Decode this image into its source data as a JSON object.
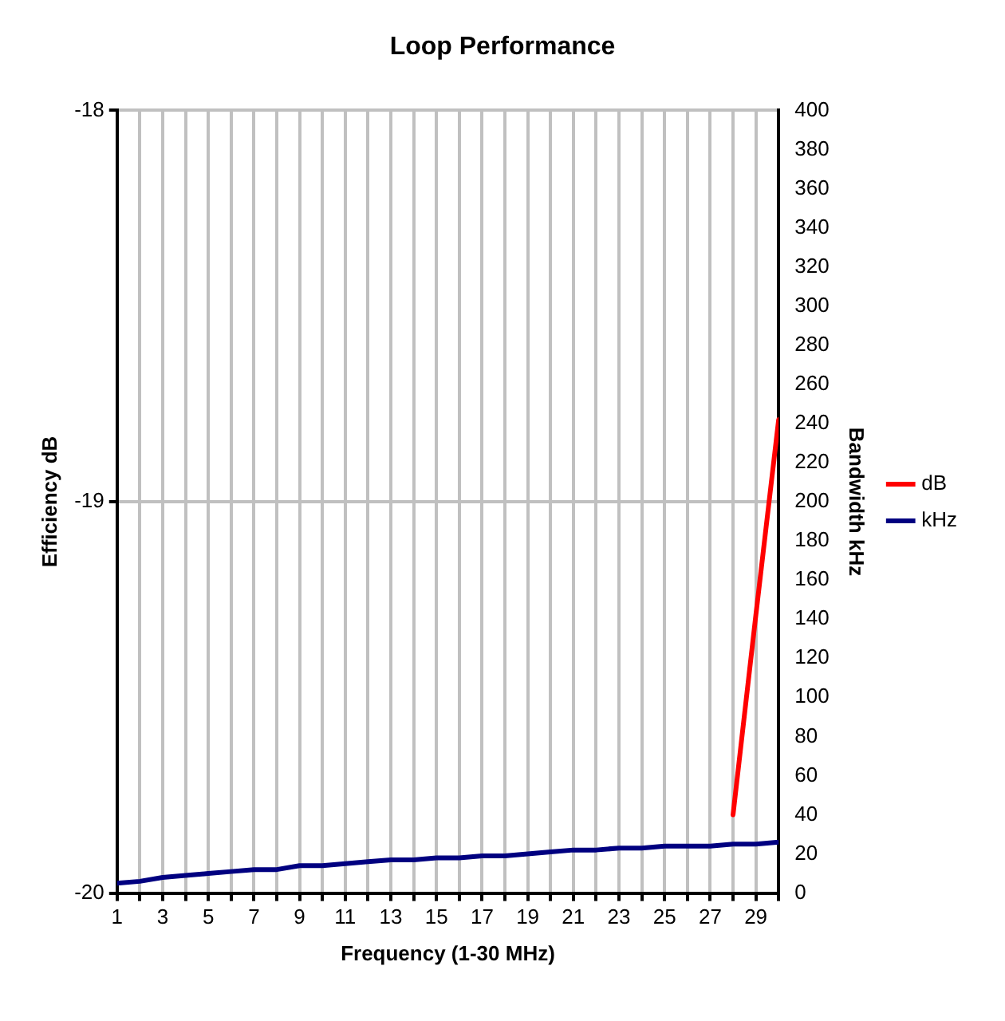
{
  "chart_data": {
    "type": "line",
    "title": "Loop Performance",
    "xlabel": "Frequency (1-30 MHz)",
    "ylabel": "Efficiency dB",
    "y2label": "Bandwidth kHz",
    "x": [
      1,
      2,
      3,
      4,
      5,
      6,
      7,
      8,
      9,
      10,
      11,
      12,
      13,
      14,
      15,
      16,
      17,
      18,
      19,
      20,
      21,
      22,
      23,
      24,
      25,
      26,
      27,
      28,
      29,
      30
    ],
    "xlim": [
      1,
      30
    ],
    "xticks": [
      1,
      {
        "value": 2,
        "label": null
      },
      3,
      {
        "value": 4,
        "label": null
      },
      5,
      {
        "value": 6,
        "label": null
      },
      7,
      {
        "value": 8,
        "label": null
      },
      9,
      {
        "value": 10,
        "label": null
      },
      11,
      {
        "value": 12,
        "label": null
      },
      13,
      {
        "value": 14,
        "label": null
      },
      15,
      {
        "value": 16,
        "label": null
      },
      17,
      {
        "value": 18,
        "label": null
      },
      19,
      {
        "value": 20,
        "label": null
      },
      21,
      {
        "value": 22,
        "label": null
      },
      23,
      {
        "value": 24,
        "label": null
      },
      25,
      {
        "value": 26,
        "label": null
      },
      27,
      {
        "value": 28,
        "label": null
      },
      29,
      {
        "value": 30,
        "label": null
      }
    ],
    "ylim": [
      -20,
      -18
    ],
    "yticks": [
      -20,
      -19,
      -18
    ],
    "y2lim": [
      0,
      400
    ],
    "y2ticks": [
      0,
      20,
      40,
      60,
      80,
      100,
      120,
      140,
      160,
      180,
      200,
      220,
      240,
      260,
      280,
      300,
      320,
      340,
      360,
      380,
      400
    ],
    "series": [
      {
        "name": "dB",
        "color": "#ff0000",
        "values": [
          null,
          null,
          null,
          null,
          null,
          null,
          null,
          null,
          null,
          null,
          null,
          null,
          null,
          null,
          null,
          null,
          null,
          null,
          null,
          null,
          null,
          null,
          null,
          null,
          null,
          null,
          null,
          -19.8,
          -19.29,
          -18.79
        ]
      },
      {
        "name": "kHz",
        "color": "#000080",
        "axis": "y2",
        "values": [
          5,
          6,
          8,
          9,
          10,
          11,
          12,
          12,
          14,
          14,
          15,
          16,
          17,
          17,
          18,
          18,
          19,
          19,
          20,
          21,
          22,
          22,
          23,
          23,
          24,
          24,
          24,
          25,
          25,
          26
        ]
      }
    ],
    "grid": true,
    "legend": "right",
    "marker": "none",
    "line_style": "solid"
  }
}
